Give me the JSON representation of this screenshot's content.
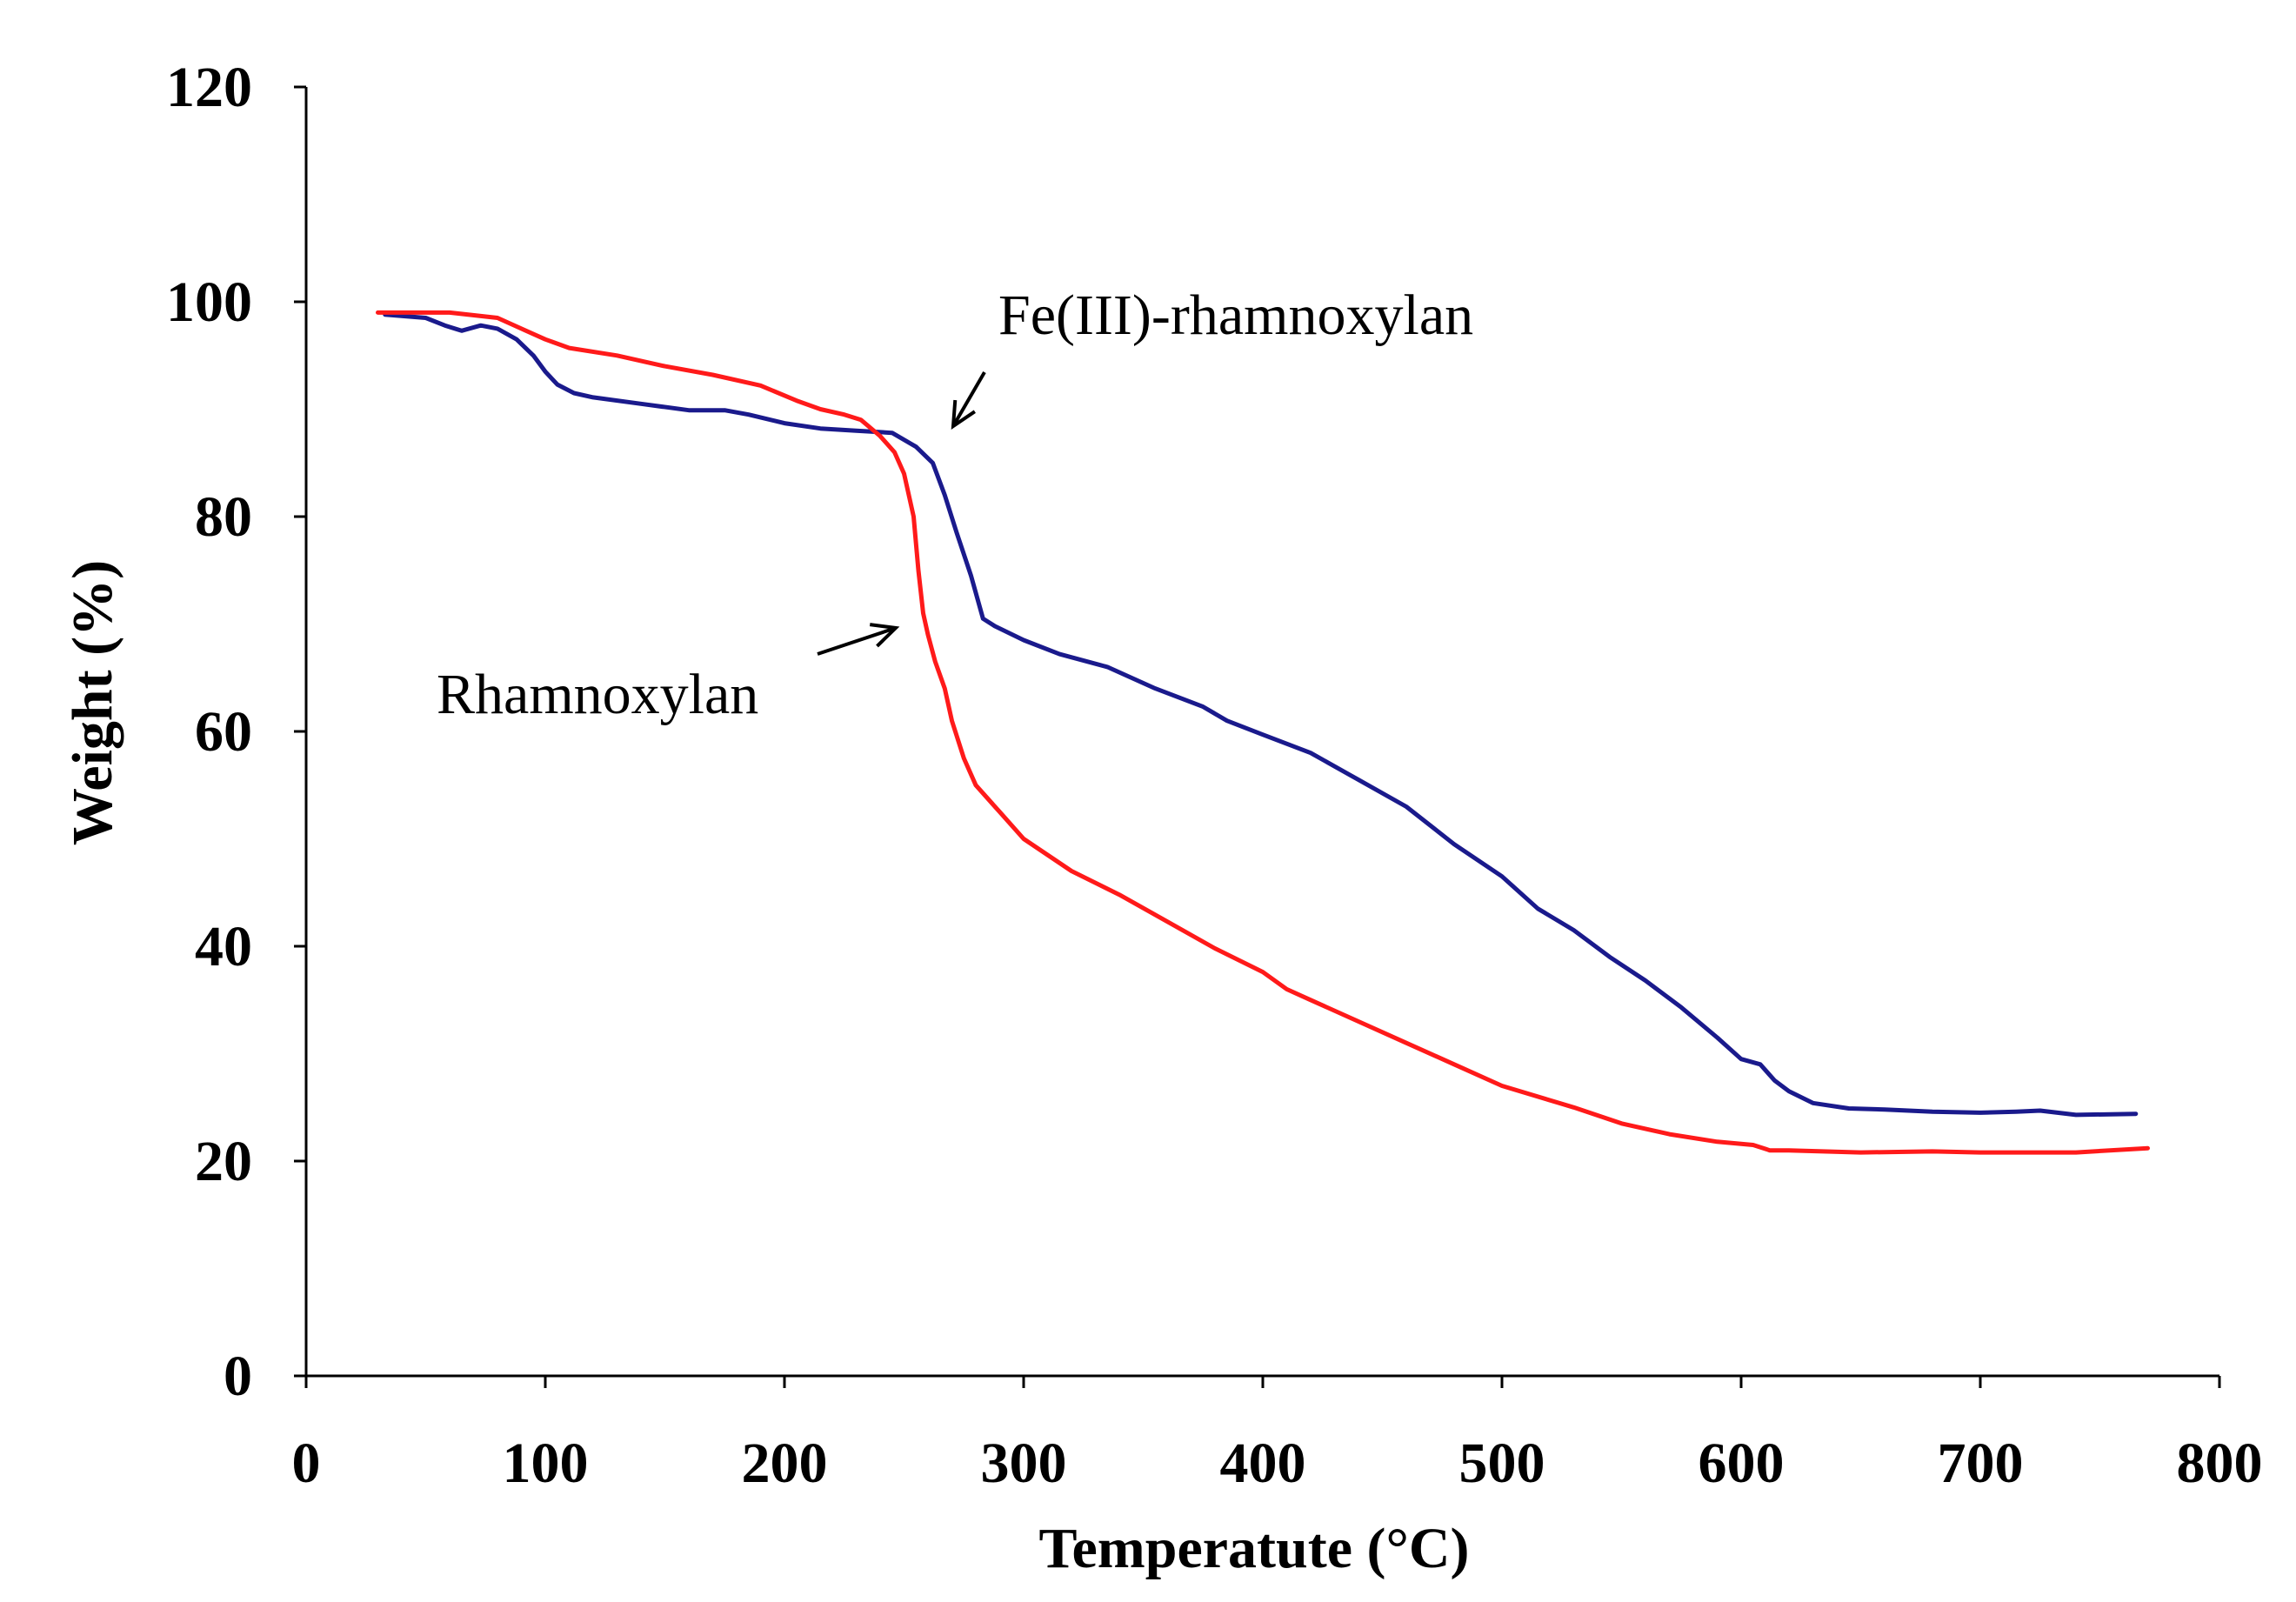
{
  "chart_data": {
    "type": "line",
    "title": "",
    "xlabel": "Temperatute (°C)",
    "ylabel": "Weight (%)",
    "xlim": [
      0,
      800
    ],
    "ylim": [
      0,
      120
    ],
    "xticks": [
      0,
      100,
      200,
      300,
      400,
      500,
      600,
      700,
      800
    ],
    "yticks": [
      0,
      20,
      40,
      60,
      80,
      100,
      120
    ],
    "grid": false,
    "series": [
      {
        "name": "Fe(III)-rhamnoxylan",
        "color": "#1a1a8c",
        "x": [
          33,
          50,
          58,
          65,
          73,
          80,
          88,
          95,
          100,
          105,
          112,
          120,
          140,
          160,
          175,
          185,
          200,
          215,
          230,
          245,
          255,
          262,
          267,
          272,
          278,
          283,
          288,
          300,
          315,
          335,
          355,
          375,
          385,
          400,
          420,
          440,
          460,
          480,
          500,
          515,
          530,
          545,
          560,
          575,
          590,
          600,
          608,
          614,
          620,
          630,
          645,
          660,
          680,
          700,
          715,
          725,
          740,
          765
        ],
        "y": [
          98.8,
          98.5,
          97.8,
          97.3,
          97.8,
          97.5,
          96.5,
          95.0,
          93.5,
          92.3,
          91.5,
          91.1,
          90.5,
          89.9,
          89.9,
          89.5,
          88.7,
          88.2,
          88.0,
          87.8,
          86.5,
          85.0,
          82.0,
          78.5,
          74.5,
          70.5,
          69.8,
          68.5,
          67.2,
          66.0,
          64.0,
          62.3,
          61.0,
          59.7,
          58.0,
          55.5,
          53.0,
          49.5,
          46.5,
          43.5,
          41.5,
          39.0,
          36.8,
          34.3,
          31.5,
          29.5,
          29.0,
          27.5,
          26.5,
          25.4,
          24.9,
          24.8,
          24.6,
          24.5,
          24.6,
          24.7,
          24.3,
          24.4
        ]
      },
      {
        "name": "Rhamnoxylan",
        "color": "#ff1a1a",
        "x": [
          30,
          60,
          80,
          90,
          100,
          110,
          130,
          150,
          170,
          190,
          205,
          215,
          225,
          232,
          240,
          246,
          250,
          254,
          256,
          258,
          260,
          263,
          267,
          270,
          275,
          280,
          290,
          300,
          320,
          340,
          360,
          380,
          400,
          410,
          420,
          440,
          460,
          480,
          500,
          530,
          550,
          570,
          590,
          605,
          612,
          620,
          650,
          680,
          700,
          740,
          770
        ],
        "y": [
          99.0,
          99.0,
          98.5,
          97.5,
          96.5,
          95.7,
          95.0,
          94.0,
          93.2,
          92.2,
          90.8,
          90.0,
          89.5,
          89.0,
          87.5,
          86.0,
          84.0,
          80.0,
          75.0,
          71.0,
          69.0,
          66.5,
          64.0,
          61.0,
          57.5,
          55.0,
          52.5,
          50.0,
          47.0,
          44.8,
          42.3,
          39.8,
          37.6,
          36.0,
          35.0,
          33.0,
          31.0,
          29.0,
          27.0,
          25.0,
          23.5,
          22.5,
          21.8,
          21.5,
          21.0,
          21.0,
          20.8,
          20.9,
          20.8,
          20.8,
          21.2
        ]
      }
    ],
    "annotations": [
      {
        "text": "Fe(III)-rhamnoxylan",
        "target_series": "Fe(III)-rhamnoxylan"
      },
      {
        "text": "Rhamnoxylan",
        "target_series": "Rhamnoxylan"
      }
    ]
  }
}
